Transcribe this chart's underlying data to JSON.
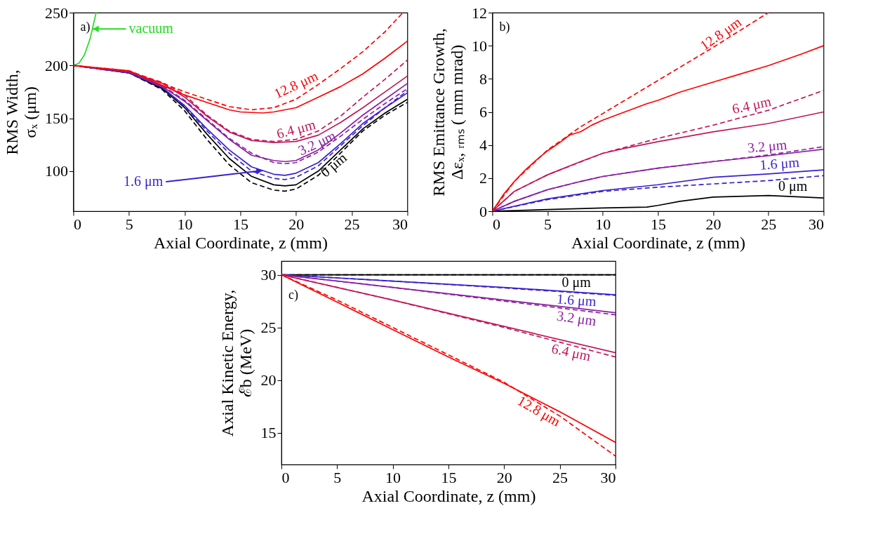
{
  "chart_data": [
    {
      "type": "line",
      "xlabel": "Axial Coordinate, z (mm)",
      "ylabel": "RMS Width,\nσₓ (μm)",
      "xlim": [
        0,
        30
      ],
      "ylim": [
        62,
        250
      ],
      "xticks": [
        0,
        5,
        10,
        15,
        20,
        25,
        30
      ],
      "yticks": [
        100,
        150,
        200,
        250
      ],
      "series": [
        {
          "name": "vacuum",
          "color": "#22dd22",
          "line_style": "solid",
          "x": [
            0,
            0.5,
            1,
            1.5,
            2.05
          ],
          "values": [
            200,
            202,
            210,
            225,
            250
          ]
        },
        {
          "name": "0 μm",
          "color": "#000000",
          "line_style": "solid",
          "x": [
            0,
            5,
            8,
            10,
            12,
            14,
            16,
            18,
            19,
            20,
            22,
            24,
            26,
            28,
            30
          ],
          "values": [
            200,
            193,
            178,
            160,
            135,
            112,
            95,
            87,
            86,
            87,
            100,
            120,
            140,
            155,
            168
          ]
        },
        {
          "color": "#000000",
          "line_style": "dashed",
          "x": [
            0,
            5,
            8,
            10,
            12,
            14,
            16,
            18,
            19,
            20,
            22,
            24,
            26,
            28,
            30
          ],
          "values": [
            200,
            193,
            177,
            157,
            130,
            106,
            89,
            82,
            81,
            83,
            96,
            117,
            138,
            153,
            165
          ]
        },
        {
          "name": "1.6 μm",
          "color": "#3a1fd0",
          "line_style": "solid",
          "x": [
            0,
            5,
            8,
            10,
            12,
            14,
            16,
            18,
            19,
            20,
            22,
            24,
            26,
            28,
            30
          ],
          "values": [
            200,
            193,
            179,
            162,
            140,
            120,
            104,
            97,
            96,
            98,
            108,
            126,
            145,
            160,
            174
          ]
        },
        {
          "color": "#3a1fd0",
          "line_style": "dashed",
          "x": [
            0,
            5,
            8,
            10,
            12,
            14,
            16,
            18,
            19,
            20,
            22,
            24,
            26,
            28,
            30
          ],
          "values": [
            200,
            193,
            179,
            161,
            138,
            117,
            100,
            93,
            92,
            94,
            105,
            124,
            143,
            160,
            176
          ]
        },
        {
          "name": "3.2 μm",
          "color": "#8a1fa0",
          "line_style": "solid",
          "x": [
            0,
            5,
            8,
            10,
            12,
            14,
            16,
            18,
            19,
            20,
            22,
            24,
            26,
            28,
            30
          ],
          "values": [
            200,
            194,
            180,
            166,
            148,
            130,
            115,
            110,
            109,
            110,
            120,
            136,
            153,
            168,
            183
          ]
        },
        {
          "color": "#8a1fa0",
          "line_style": "dashed",
          "x": [
            0,
            5,
            8,
            10,
            12,
            14,
            16,
            18,
            19,
            20,
            22,
            24,
            26,
            28,
            30
          ],
          "values": [
            200,
            194,
            181,
            167,
            149,
            131,
            117,
            108,
            107,
            108,
            118,
            133,
            149,
            164,
            178
          ]
        },
        {
          "name": "6.4 μm",
          "color": "#c0185a",
          "line_style": "solid",
          "x": [
            0,
            5,
            8,
            10,
            12,
            14,
            16,
            18,
            20,
            22,
            24,
            26,
            28,
            30
          ],
          "values": [
            200,
            194,
            183,
            170,
            152,
            137,
            129,
            127,
            128,
            134,
            146,
            160,
            175,
            190
          ]
        },
        {
          "color": "#c0185a",
          "line_style": "dashed",
          "x": [
            0,
            5,
            8,
            10,
            12,
            14,
            16,
            18,
            20,
            22,
            24,
            26,
            28,
            30
          ],
          "values": [
            200,
            194,
            184,
            172,
            153,
            138,
            130,
            128,
            130,
            138,
            152,
            170,
            187,
            205
          ]
        },
        {
          "name": "12.8 μm",
          "color": "#ff0000",
          "line_style": "solid",
          "x": [
            0,
            5,
            8,
            10,
            12,
            14,
            15,
            17,
            18,
            20,
            22,
            24,
            26,
            28,
            30
          ],
          "values": [
            200,
            195,
            181,
            172,
            165,
            158,
            156,
            155,
            156,
            160,
            170,
            180,
            192,
            207,
            223
          ]
        },
        {
          "color": "#ff0000",
          "line_style": "dashed",
          "x": [
            0,
            5,
            8,
            10,
            12,
            14,
            16,
            18,
            20,
            22,
            24,
            26,
            28,
            29.6
          ],
          "values": [
            200,
            195,
            183,
            175,
            168,
            161,
            158,
            160,
            168,
            182,
            197,
            213,
            232,
            250
          ]
        }
      ],
      "annotations": [
        "a)"
      ]
    },
    {
      "type": "line",
      "xlabel": "Axial Coordinate, z (mm)",
      "ylabel": "RMS Emittance Growth,\nΔεₓ, ᵣₘₛ ( mm mrad)",
      "xlim": [
        0,
        30
      ],
      "ylim": [
        0,
        12
      ],
      "xticks": [
        0,
        5,
        10,
        15,
        20,
        25,
        30
      ],
      "yticks": [
        0,
        2,
        4,
        6,
        8,
        10,
        12
      ],
      "series": [
        {
          "name": "0 μm",
          "color": "#000000",
          "line_style": "solid",
          "x": [
            0,
            5,
            10,
            14,
            15,
            17,
            20,
            25,
            30
          ],
          "values": [
            0,
            0.1,
            0.2,
            0.25,
            0.35,
            0.6,
            0.85,
            0.95,
            0.8
          ]
        },
        {
          "name": "1.6 μm",
          "color": "#3a1fd0",
          "line_style": "solid",
          "x": [
            0,
            5,
            10,
            15,
            20,
            25,
            30
          ],
          "values": [
            0,
            0.75,
            1.25,
            1.6,
            2.05,
            2.25,
            2.5
          ]
        },
        {
          "color": "#3a1fd0",
          "line_style": "dashed",
          "x": [
            0,
            5,
            10,
            15,
            20,
            25,
            30
          ],
          "values": [
            0,
            0.7,
            1.2,
            1.45,
            1.65,
            1.85,
            2.15
          ]
        },
        {
          "color": "#8a1fa0",
          "line_style": "solid",
          "x": [
            0,
            2,
            5,
            8,
            10,
            15,
            20,
            25,
            30
          ],
          "values": [
            0,
            0.6,
            1.3,
            1.8,
            2.1,
            2.6,
            3.0,
            3.35,
            3.75
          ]
        },
        {
          "name": "3.2 μm",
          "color": "#8a1fa0",
          "line_style": "dashed",
          "x": [
            0,
            2,
            5,
            8,
            10,
            15,
            20,
            25,
            30
          ],
          "values": [
            0,
            0.6,
            1.3,
            1.8,
            2.1,
            2.6,
            3.0,
            3.4,
            3.9
          ]
        },
        {
          "color": "#c0185a",
          "line_style": "solid",
          "x": [
            0,
            2,
            5,
            8,
            10,
            12,
            15,
            20,
            25,
            30
          ],
          "values": [
            0,
            1.2,
            2.2,
            3.0,
            3.5,
            3.8,
            4.2,
            4.8,
            5.3,
            6.0
          ]
        },
        {
          "name": "6.4 μm",
          "color": "#c0185a",
          "line_style": "dashed",
          "x": [
            0,
            2,
            5,
            10,
            15,
            20,
            25,
            30
          ],
          "values": [
            0,
            1.2,
            2.2,
            3.5,
            4.4,
            5.2,
            6.1,
            7.3
          ]
        },
        {
          "color": "#ff0000",
          "line_style": "solid",
          "x": [
            0,
            1,
            2,
            3,
            4,
            5,
            6,
            7,
            8,
            9,
            10,
            12,
            14,
            15,
            17,
            20,
            22,
            25,
            28,
            30
          ],
          "values": [
            0,
            1,
            1.8,
            2.5,
            3.1,
            3.65,
            4.1,
            4.6,
            4.8,
            5.2,
            5.5,
            6.0,
            6.5,
            6.7,
            7.2,
            7.8,
            8.2,
            8.8,
            9.5,
            10
          ]
        },
        {
          "name": "12.8 μm",
          "color": "#ff0000",
          "line_style": "dashed",
          "x": [
            0,
            2,
            5,
            8,
            10,
            15,
            20,
            25
          ],
          "values": [
            0,
            1.8,
            3.7,
            5.1,
            5.9,
            7.9,
            9.9,
            12
          ]
        }
      ],
      "annotations": [
        "b)"
      ]
    },
    {
      "type": "line",
      "xlabel": "Axial Coordinate, z (mm)",
      "ylabel": "Axial Kinetic Energy,\nℰb (MeV)",
      "xlim": [
        0,
        30
      ],
      "ylim": [
        12,
        31.3
      ],
      "xticks": [
        0,
        5,
        10,
        15,
        20,
        25,
        30
      ],
      "yticks": [
        15,
        20,
        25,
        30
      ],
      "series": [
        {
          "name": "0 μm",
          "color": "#000000",
          "line_style": "solid",
          "x": [
            0,
            30
          ],
          "values": [
            30,
            30
          ]
        },
        {
          "color": "#000000",
          "line_style": "dashed",
          "x": [
            0,
            30
          ],
          "values": [
            30,
            30
          ]
        },
        {
          "name": "1.6 μm",
          "color": "#3a1fd0",
          "line_style": "solid",
          "x": [
            0,
            10,
            20,
            30
          ],
          "values": [
            30,
            29.4,
            28.8,
            28.1
          ]
        },
        {
          "color": "#3a1fd0",
          "line_style": "dashed",
          "x": [
            0,
            10,
            20,
            30
          ],
          "values": [
            30,
            29.4,
            28.75,
            28.05
          ]
        },
        {
          "name": "3.2 μm",
          "color": "#8a1fa0",
          "line_style": "solid",
          "x": [
            0,
            10,
            20,
            30
          ],
          "values": [
            30,
            28.8,
            27.6,
            26.4
          ]
        },
        {
          "color": "#8a1fa0",
          "line_style": "dashed",
          "x": [
            0,
            10,
            20,
            30
          ],
          "values": [
            30,
            28.8,
            27.5,
            26.2
          ]
        },
        {
          "name": "6.4 μm",
          "color": "#c0185a",
          "line_style": "solid",
          "x": [
            0,
            10,
            20,
            30
          ],
          "values": [
            30,
            27.6,
            25.1,
            22.6
          ]
        },
        {
          "color": "#c0185a",
          "line_style": "dashed",
          "x": [
            0,
            10,
            20,
            30
          ],
          "values": [
            30,
            27.6,
            25.0,
            22.2
          ]
        },
        {
          "name": "12.8 μm",
          "color": "#ff0000",
          "line_style": "solid",
          "x": [
            0,
            5,
            10,
            15,
            20,
            25,
            30
          ],
          "values": [
            30,
            27.4,
            24.8,
            22.2,
            19.7,
            17.0,
            14.1
          ]
        },
        {
          "color": "#ff0000",
          "line_style": "dashed",
          "x": [
            0,
            5,
            10,
            15,
            20,
            25,
            30
          ],
          "values": [
            30,
            27.6,
            25.0,
            22.4,
            19.8,
            16.6,
            12.8
          ]
        }
      ],
      "annotations": [
        "c)"
      ]
    }
  ]
}
